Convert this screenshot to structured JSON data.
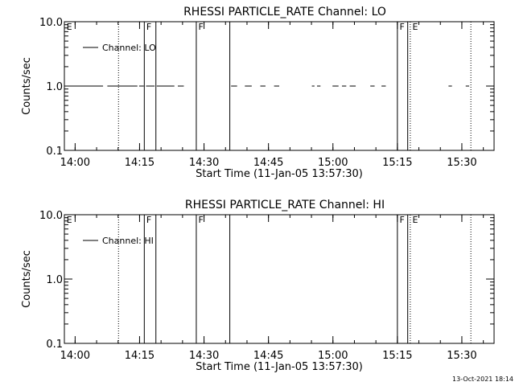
{
  "footer_timestamp": "13-Oct-2021 18:14",
  "colors": {
    "background": "#ffffff",
    "foreground": "#000000"
  },
  "chart_data": [
    {
      "type": "line",
      "title": "RHESSI PARTICLE_RATE Channel: LO",
      "xlabel": "Start Time (11-Jan-05 13:57:30)",
      "ylabel": "Counts/sec",
      "y_scale": "log",
      "ylim": [
        0.1,
        10.0
      ],
      "y_ticks": [
        {
          "v": 0.1,
          "label": "0.1"
        },
        {
          "v": 1.0,
          "label": "1.0"
        },
        {
          "v": 10.0,
          "label": "10.0"
        }
      ],
      "x_range_min": [
        0,
        100
      ],
      "x_ticks": [
        {
          "v": 2.5,
          "label": "14:00"
        },
        {
          "v": 17.5,
          "label": "14:15"
        },
        {
          "v": 32.5,
          "label": "14:30"
        },
        {
          "v": 47.5,
          "label": "14:45"
        },
        {
          "v": 62.5,
          "label": "15:00"
        },
        {
          "v": 77.5,
          "label": "15:15"
        },
        {
          "v": 92.5,
          "label": "15:30"
        }
      ],
      "legend": {
        "label": "Channel: LO",
        "placement": "top-left"
      },
      "solid_markers": [
        18.6,
        21.3,
        30.7,
        38.5,
        77.5,
        79.9
      ],
      "dotted_markers": [
        12.6,
        80.5,
        94.6
      ],
      "marker_letters": [
        {
          "t": 0.3,
          "label": "E"
        },
        {
          "t": 18.9,
          "label": "F"
        },
        {
          "t": 31.0,
          "label": "F"
        },
        {
          "t": 77.8,
          "label": "F"
        },
        {
          "t": 80.8,
          "label": "E"
        }
      ],
      "series": [
        {
          "segments": [
            {
              "x": [
                0,
                9.0
              ],
              "y": 1.0
            },
            {
              "x": [
                10.0,
                17.0
              ],
              "y": 1.0
            },
            {
              "x": [
                17.4,
                18.5
              ],
              "y": 1.0
            },
            {
              "x": [
                19.0,
                21.0
              ],
              "y": 1.0
            },
            {
              "x": [
                21.5,
                25.6
              ],
              "y": 1.0
            },
            {
              "x": [
                26.4,
                27.8
              ],
              "y": 1.0
            },
            {
              "x": [
                38.8,
                40.2
              ],
              "y": 1.0
            },
            {
              "x": [
                42.0,
                43.6
              ],
              "y": 1.0
            },
            {
              "x": [
                45.6,
                46.8
              ],
              "y": 1.0
            },
            {
              "x": [
                48.8,
                50.0
              ],
              "y": 1.0
            },
            {
              "x": [
                57.6,
                58.2
              ],
              "y": 1.0
            },
            {
              "x": [
                58.8,
                59.6
              ],
              "y": 1.0
            },
            {
              "x": [
                62.4,
                63.8
              ],
              "y": 1.0
            },
            {
              "x": [
                64.6,
                65.6
              ],
              "y": 1.0
            },
            {
              "x": [
                66.4,
                67.8
              ],
              "y": 1.0
            },
            {
              "x": [
                71.2,
                72.2
              ],
              "y": 1.0
            },
            {
              "x": [
                73.8,
                74.8
              ],
              "y": 1.0
            },
            {
              "x": [
                89.4,
                90.2
              ],
              "y": 1.0
            },
            {
              "x": [
                93.4,
                94.2
              ],
              "y": 1.0
            }
          ]
        }
      ]
    },
    {
      "type": "line",
      "title": "RHESSI PARTICLE_RATE Channel: HI",
      "xlabel": "Start Time (11-Jan-05 13:57:30)",
      "ylabel": "Counts/sec",
      "y_scale": "log",
      "ylim": [
        0.1,
        10.0
      ],
      "y_ticks": [
        {
          "v": 0.1,
          "label": "0.1"
        },
        {
          "v": 1.0,
          "label": "1.0"
        },
        {
          "v": 10.0,
          "label": "10.0"
        }
      ],
      "x_range_min": [
        0,
        100
      ],
      "x_ticks": [
        {
          "v": 2.5,
          "label": "14:00"
        },
        {
          "v": 17.5,
          "label": "14:15"
        },
        {
          "v": 32.5,
          "label": "14:30"
        },
        {
          "v": 47.5,
          "label": "14:45"
        },
        {
          "v": 62.5,
          "label": "15:00"
        },
        {
          "v": 77.5,
          "label": "15:15"
        },
        {
          "v": 92.5,
          "label": "15:30"
        }
      ],
      "legend": {
        "label": "Channel: HI",
        "placement": "top-left"
      },
      "solid_markers": [
        18.6,
        21.3,
        30.7,
        38.5,
        77.5,
        79.9
      ],
      "dotted_markers": [
        12.6,
        80.5,
        94.6
      ],
      "marker_letters": [
        {
          "t": 0.3,
          "label": "E"
        },
        {
          "t": 18.9,
          "label": "F"
        },
        {
          "t": 31.0,
          "label": "F"
        },
        {
          "t": 77.8,
          "label": "F"
        },
        {
          "t": 80.8,
          "label": "E"
        }
      ],
      "series": [
        {
          "segments": []
        }
      ]
    }
  ]
}
